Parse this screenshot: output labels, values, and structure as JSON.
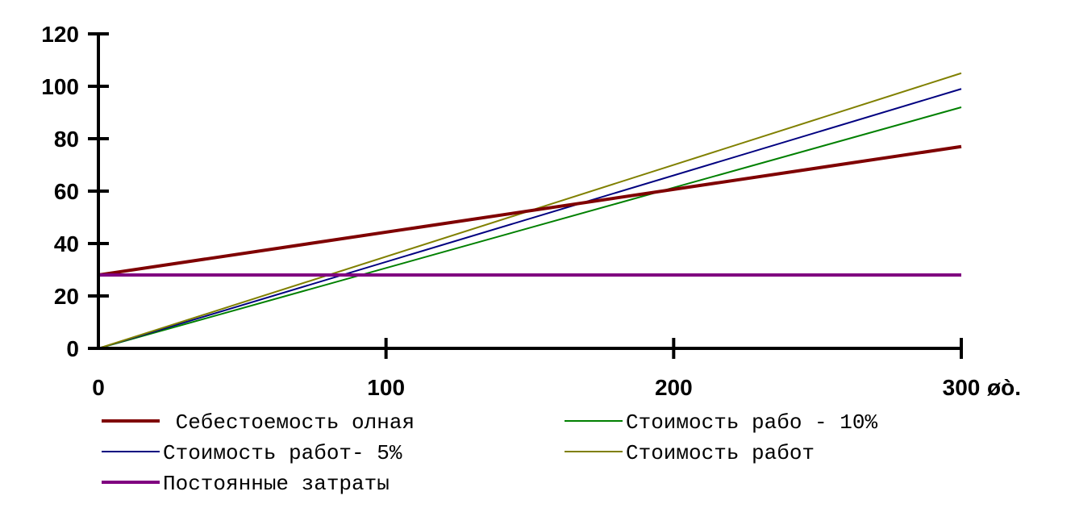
{
  "chart_data": {
    "type": "line",
    "title": "",
    "xlabel": "",
    "ylabel": "",
    "x_unit_label": "øò.",
    "xlim": [
      0,
      300
    ],
    "ylim": [
      0,
      120
    ],
    "x_ticks": [
      0,
      100,
      200,
      300
    ],
    "y_ticks": [
      0,
      20,
      40,
      60,
      80,
      100,
      120
    ],
    "grid": false,
    "legend_position": "bottom",
    "series": [
      {
        "name": " Себестоемость олная",
        "color": "#7f0000",
        "width": 4,
        "x": [
          0,
          300
        ],
        "y": [
          28,
          77
        ]
      },
      {
        "name": "Стоимость рабо - 10%",
        "color": "#008000",
        "width": 2,
        "x": [
          0,
          300
        ],
        "y": [
          0,
          92
        ]
      },
      {
        "name": "Стоимость работ- 5%",
        "color": "#000080",
        "width": 2,
        "x": [
          0,
          300
        ],
        "y": [
          0,
          99
        ]
      },
      {
        "name": "Стоимость работ",
        "color": "#808000",
        "width": 2,
        "x": [
          0,
          300
        ],
        "y": [
          0,
          105
        ]
      },
      {
        "name": "Постоянные затраты",
        "color": "#800080",
        "width": 4,
        "x": [
          0,
          300
        ],
        "y": [
          28,
          28
        ]
      }
    ]
  }
}
